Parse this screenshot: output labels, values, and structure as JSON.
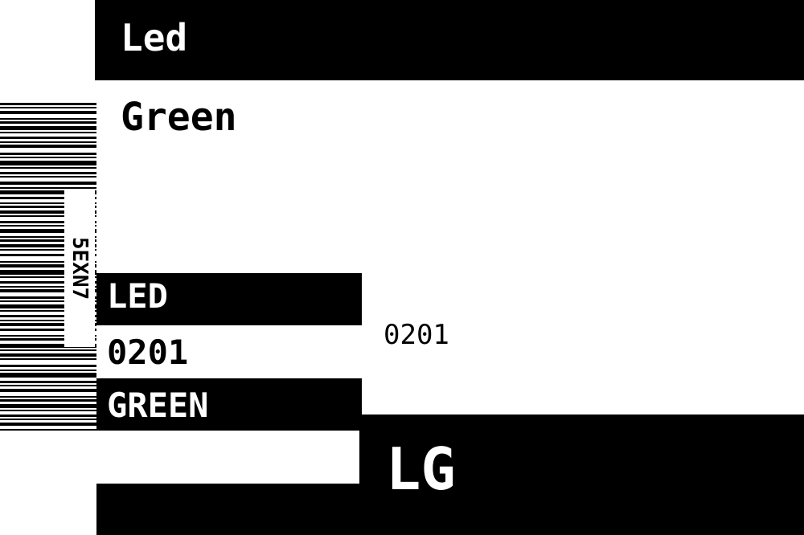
{
  "label": {
    "title": "Led",
    "subtitle": "Green",
    "led_label": "LED",
    "number_bold": "0201",
    "green_label": "GREEN",
    "number_plain": "0201",
    "brand_short": "LG",
    "barcode_code": "5EXN7"
  },
  "colors": {
    "ink": "#000000",
    "paper": "#ffffff"
  }
}
